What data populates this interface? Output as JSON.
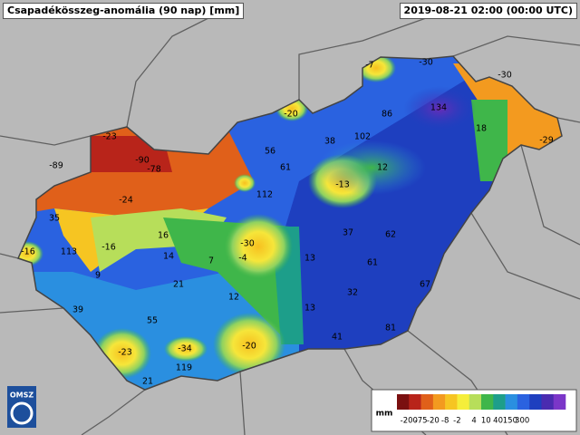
{
  "header": {
    "title": "Csapadékösszeg-anomália (90 nap) [mm]",
    "timestamp": "2019-08-21 02:00 (00:00 UTC)"
  },
  "map": {
    "labels": [
      -7,
      -30,
      -30,
      -20,
      86,
      134,
      18,
      -29,
      -23,
      38,
      102,
      56,
      61,
      12,
      -89,
      -90,
      -78,
      -13,
      112,
      -24,
      35,
      37,
      62,
      16,
      -30,
      -16,
      113,
      -16,
      14,
      7,
      -4,
      13,
      61,
      9,
      21,
      32,
      67,
      12,
      39,
      13,
      55,
      81,
      41,
      -20,
      -23,
      -34,
      119,
      21
    ]
  },
  "legend": {
    "unit": "mm",
    "ticks": [
      -200,
      -75,
      -20,
      -8,
      -2,
      4,
      10,
      40,
      150,
      300
    ],
    "colors": [
      "#7a1010",
      "#b8241a",
      "#e0601a",
      "#f39a1f",
      "#f6c522",
      "#f5ee3a",
      "#b7de5a",
      "#3fb64a",
      "#1d9e8a",
      "#2a8fe0",
      "#2a62e0",
      "#1e3fbf",
      "#4a2bb0",
      "#7b36c8"
    ]
  },
  "logo": "OMSZ"
}
